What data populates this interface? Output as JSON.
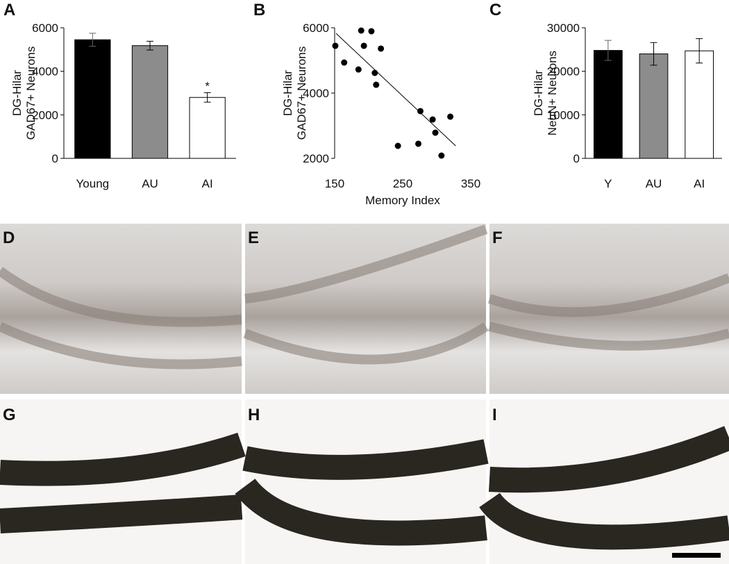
{
  "chart_data": [
    {
      "type": "bar",
      "label": "A",
      "ylabel": [
        "DG-Hilar",
        "GAD67+ Neurons"
      ],
      "categories": [
        "Young",
        "AU",
        "AI"
      ],
      "values": [
        5450,
        5180,
        2800
      ],
      "errors": [
        300,
        200,
        220
      ],
      "colors": [
        "#000000",
        "#8c8c8c",
        "#ffffff"
      ],
      "annotations": [
        null,
        null,
        "*"
      ],
      "ylim": [
        0,
        6000
      ],
      "yticks": [
        0,
        2000,
        4000,
        6000
      ]
    },
    {
      "type": "scatter",
      "label": "B",
      "ylabel": [
        "DG-Hilar",
        "GAD67+ Neurons"
      ],
      "xlabel": "Memory Index",
      "x": [
        151,
        164,
        189,
        193,
        185,
        204,
        218,
        209,
        211,
        243,
        276,
        273,
        294,
        298,
        307,
        320
      ],
      "values": [
        5447,
        4936,
        5915,
        5447,
        4723,
        5894,
        5362,
        4617,
        4255,
        2383,
        3447,
        2447,
        3191,
        2787,
        2085,
        3277
      ],
      "color": "#000000",
      "trendline": {
        "x": [
          152,
          328
        ],
        "values": [
          5830,
          2380
        ]
      },
      "xlim": [
        150,
        350
      ],
      "xticks": [
        150,
        250,
        350
      ],
      "ylim": [
        2000,
        6000
      ],
      "yticks": [
        2000,
        4000,
        6000
      ]
    },
    {
      "type": "bar",
      "label": "C",
      "ylabel": [
        "DG-Hilar",
        "NeuN+ Neurons"
      ],
      "categories": [
        "Y",
        "AU",
        "AI"
      ],
      "values": [
        24800,
        24000,
        24700
      ],
      "errors": [
        2300,
        2600,
        2800
      ],
      "colors": [
        "#000000",
        "#8c8c8c",
        "#ffffff"
      ],
      "ylim": [
        0,
        30000
      ],
      "yticks": [
        0,
        10000,
        20000,
        30000
      ]
    }
  ],
  "panels": [
    {
      "label": "D"
    },
    {
      "label": "E"
    },
    {
      "label": "F"
    },
    {
      "label": "G"
    },
    {
      "label": "H"
    },
    {
      "label": "I"
    }
  ]
}
